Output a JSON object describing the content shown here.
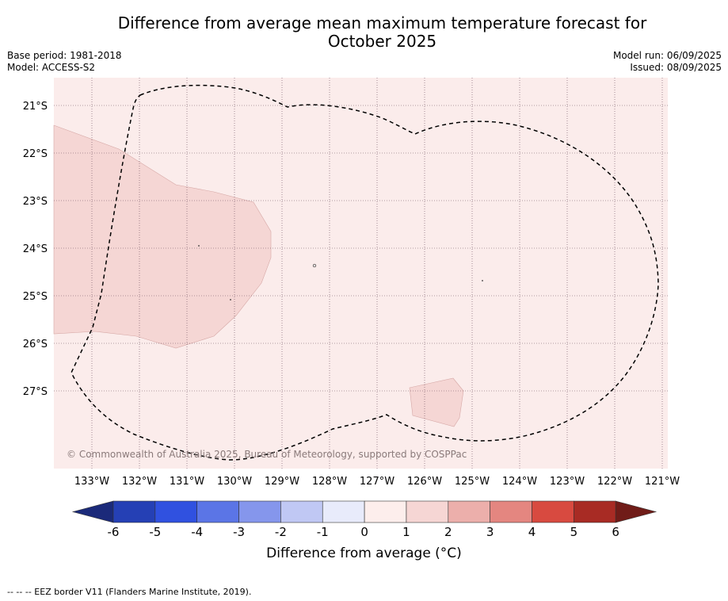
{
  "header": {
    "title_line1": "Difference from average mean maximum temperature forecast for",
    "title_line2": "October 2025",
    "base_period": "Base period: 1981-2018",
    "model": "Model: ACCESS-S2",
    "model_run": "Model run: 06/09/2025",
    "issued": "Issued: 08/09/2025"
  },
  "map": {
    "copyright": "© Commonwealth of Australia 2025, Bureau of Meteorology, supported by COSPPac",
    "background_color": "#fbeceb",
    "anomaly_fill_color": "#f5d6d4",
    "lat_labels": [
      "21°S",
      "22°S",
      "23°S",
      "24°S",
      "25°S",
      "26°S",
      "27°S"
    ],
    "lon_labels": [
      "133°W",
      "132°W",
      "131°W",
      "130°W",
      "129°W",
      "128°W",
      "127°W",
      "126°W",
      "125°W",
      "124°W",
      "123°W",
      "122°W",
      "121°W"
    ]
  },
  "colorbar": {
    "title": "Difference from average (°C)",
    "ticks": [
      "-6",
      "-5",
      "-4",
      "-3",
      "-2",
      "-1",
      "0",
      "1",
      "2",
      "3",
      "4",
      "5",
      "6"
    ],
    "colors": [
      "#1b2a7a",
      "#2540b5",
      "#3051e0",
      "#5b75e6",
      "#8596ec",
      "#c0c8f4",
      "#e8ebfb",
      "#fdeeec",
      "#f6d6d4",
      "#ecafab",
      "#e48680",
      "#d84a40",
      "#a82b24",
      "#701c18"
    ]
  },
  "footnote": "--  --  -- EEZ border V11 (Flanders Marine Institute, 2019)."
}
